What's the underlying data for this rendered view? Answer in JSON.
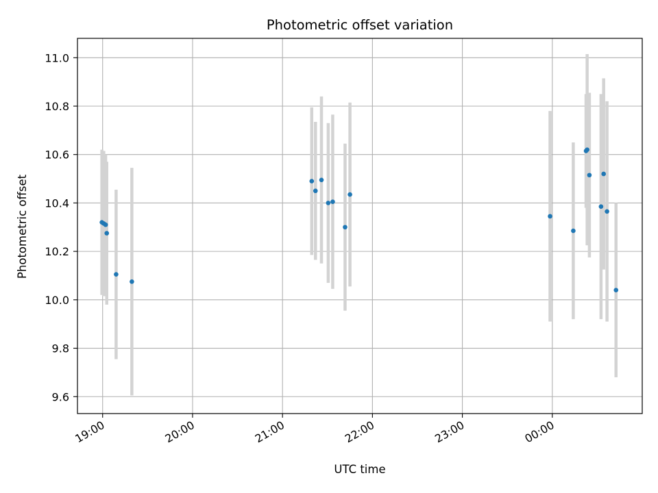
{
  "chart_data": {
    "type": "scatter",
    "title": "Photometric offset variation",
    "xlabel": "UTC time",
    "ylabel": "Photometric offset",
    "x_ticks": [
      "19:00",
      "20:00",
      "21:00",
      "22:00",
      "23:00",
      "00:00"
    ],
    "x_tick_hours": [
      19,
      20,
      21,
      22,
      23,
      24
    ],
    "xlim_hours": [
      18.72,
      25.0
    ],
    "y_ticks": [
      "9.6",
      "9.8",
      "10.0",
      "10.2",
      "10.4",
      "10.6",
      "10.8",
      "11.0"
    ],
    "ylim": [
      9.53,
      11.08
    ],
    "grid": true,
    "colors": {
      "point": "#1f77b4",
      "errorbar": "#d3d3d3",
      "grid": "#b0b0b0"
    },
    "points": [
      {
        "t": "18:59:30",
        "y": 10.32,
        "err": 0.3
      },
      {
        "t": "19:00:45",
        "y": 10.315,
        "err": 0.3
      },
      {
        "t": "19:02:00",
        "y": 10.31,
        "err": 0.29
      },
      {
        "t": "19:02:45",
        "y": 10.275,
        "err": 0.295
      },
      {
        "t": "19:09:00",
        "y": 10.105,
        "err": 0.35
      },
      {
        "t": "19:19:30",
        "y": 10.075,
        "err": 0.47
      },
      {
        "t": "21:19:30",
        "y": 10.49,
        "err": 0.305
      },
      {
        "t": "21:22:00",
        "y": 10.45,
        "err": 0.285
      },
      {
        "t": "21:26:00",
        "y": 10.495,
        "err": 0.345
      },
      {
        "t": "21:30:30",
        "y": 10.4,
        "err": 0.33
      },
      {
        "t": "21:33:30",
        "y": 10.405,
        "err": 0.36
      },
      {
        "t": "21:41:45",
        "y": 10.3,
        "err": 0.345
      },
      {
        "t": "21:45:00",
        "y": 10.435,
        "err": 0.38
      },
      {
        "t": "23:58:30",
        "y": 10.345,
        "err": 0.435
      },
      {
        "t": "00:14:00",
        "y": 10.285,
        "err": 0.365
      },
      {
        "t": "00:22:30",
        "y": 10.615,
        "err": 0.235
      },
      {
        "t": "00:23:15",
        "y": 10.62,
        "err": 0.395
      },
      {
        "t": "00:24:45",
        "y": 10.515,
        "err": 0.34
      },
      {
        "t": "00:32:30",
        "y": 10.385,
        "err": 0.465
      },
      {
        "t": "00:34:15",
        "y": 10.52,
        "err": 0.395
      },
      {
        "t": "00:36:30",
        "y": 10.365,
        "err": 0.455
      },
      {
        "t": "00:42:30",
        "y": 10.04,
        "err": 0.36
      }
    ]
  }
}
